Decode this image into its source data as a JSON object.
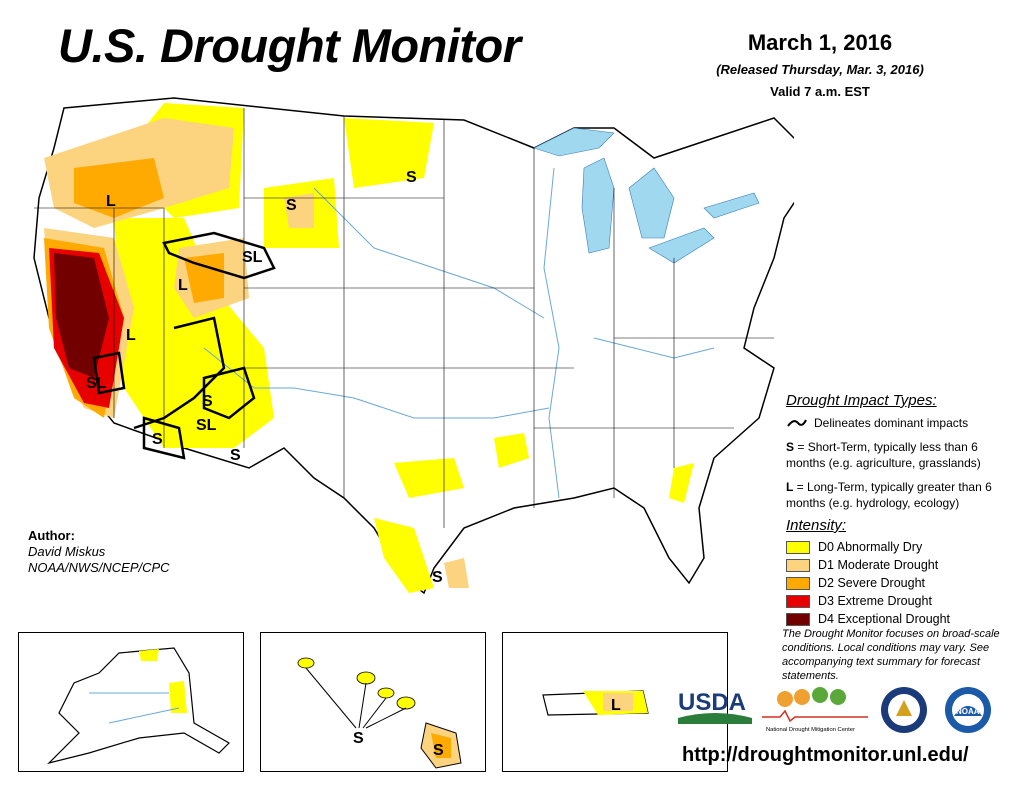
{
  "header": {
    "title": "U.S. Drought Monitor",
    "date": "March 1, 2016",
    "released": "(Released Thursday, Mar. 3, 2016)",
    "valid": "Valid 7 a.m. EST"
  },
  "map": {
    "impact_labels": [
      "L",
      "S",
      "S",
      "SL",
      "L",
      "L",
      "SL",
      "S",
      "SL",
      "S",
      "S",
      "S",
      "S",
      "S",
      "L"
    ]
  },
  "legend": {
    "impact_title": "Drought Impact Types:",
    "delineates": "Delineates dominant impacts",
    "short_term_code": "S",
    "short_term_desc": " = Short-Term, typically less than 6 months (e.g. agriculture, grasslands)",
    "long_term_code": "L",
    "long_term_desc": " = Long-Term, typically greater than 6 months (e.g. hydrology, ecology)",
    "intensity_title": "Intensity:",
    "categories": [
      {
        "label": "D0 Abnormally Dry",
        "color": "#ffff00"
      },
      {
        "label": "D1 Moderate Drought",
        "color": "#fcd37f"
      },
      {
        "label": "D2 Severe Drought",
        "color": "#ffaa00"
      },
      {
        "label": "D3 Extreme Drought",
        "color": "#e60000"
      },
      {
        "label": "D4 Exceptional Drought",
        "color": "#730000"
      }
    ]
  },
  "author": {
    "label": "Author:",
    "name": "David Miskus",
    "org": "NOAA/NWS/NCEP/CPC"
  },
  "note": "The Drought Monitor focuses on broad-scale conditions. Local conditions may vary. See accompanying text summary for forecast statements.",
  "logos": {
    "usda": "USDA",
    "ndmc": "National Drought Mitigation Center",
    "doc_icon": "department-of-commerce-seal-icon",
    "noaa": "NOAA"
  },
  "url": "http://droughtmonitor.unl.edu/",
  "colors": {
    "water": "#9fd8ef",
    "river": "#6aa8d8",
    "d0": "#ffff00",
    "d1": "#fcd37f",
    "d2": "#ffaa00",
    "d3": "#e60000",
    "d4": "#730000"
  }
}
